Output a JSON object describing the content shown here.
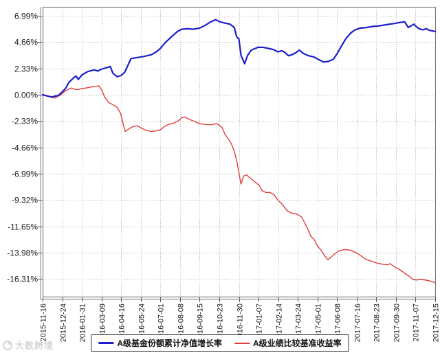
{
  "watermark": {
    "text": "大数跨境"
  },
  "colors": {
    "fund_line": "#1c1ccb",
    "benchmark_line": "#e23b3b",
    "grid": "#b8b8b8",
    "axis": "#7e7e7e"
  },
  "chart_data": {
    "type": "line",
    "grid": true,
    "legend_position": "bottom",
    "x_tick_labels": [
      "2015-11-16",
      "2015-12-24",
      "2016-01-31",
      "2016-03-09",
      "2016-04-16",
      "2016-05-24",
      "2016-07-01",
      "2016-08-08",
      "2016-09-15",
      "2016-10-23",
      "2016-11-30",
      "2017-01-07",
      "2017-02-14",
      "2017-03-24",
      "2017-05-01",
      "2017-06-08",
      "2017-07-16",
      "2017-08-23",
      "2017-09-30",
      "2017-11-07",
      "2017-12-15"
    ],
    "y_tick_labels": [
      "6.99%",
      "4.66%",
      "2.33%",
      "0.00%",
      "-2.33%",
      "-4.66%",
      "-6.99%",
      "-9.32%",
      "-11.65%",
      "-13.98%",
      "-16.31%"
    ],
    "y_ticks": [
      6.99,
      4.66,
      2.33,
      0.0,
      -2.33,
      -4.66,
      -6.99,
      -9.32,
      -11.65,
      -13.98,
      -16.31
    ],
    "ylim": [
      -17.9,
      7.8
    ],
    "x_range_days": 760,
    "series": [
      {
        "name": "A级基金份额累计净值增长率",
        "color": "#1c1ccb",
        "width": 2.2,
        "points": [
          [
            0,
            0.0
          ],
          [
            8,
            -0.1
          ],
          [
            17,
            -0.2
          ],
          [
            31,
            -0.05
          ],
          [
            39,
            0.3
          ],
          [
            45,
            0.6
          ],
          [
            51,
            1.1
          ],
          [
            60,
            1.5
          ],
          [
            65,
            1.65
          ],
          [
            69,
            1.35
          ],
          [
            76,
            1.75
          ],
          [
            87,
            2.05
          ],
          [
            100,
            2.2
          ],
          [
            107,
            2.1
          ],
          [
            113,
            2.25
          ],
          [
            124,
            2.4
          ],
          [
            131,
            2.5
          ],
          [
            136,
            1.9
          ],
          [
            144,
            1.6
          ],
          [
            152,
            1.7
          ],
          [
            159,
            2.0
          ],
          [
            165,
            2.6
          ],
          [
            171,
            3.2
          ],
          [
            184,
            3.3
          ],
          [
            197,
            3.4
          ],
          [
            211,
            3.55
          ],
          [
            220,
            3.8
          ],
          [
            228,
            4.1
          ],
          [
            237,
            4.6
          ],
          [
            251,
            5.2
          ],
          [
            261,
            5.6
          ],
          [
            269,
            5.8
          ],
          [
            280,
            5.85
          ],
          [
            291,
            5.8
          ],
          [
            304,
            5.9
          ],
          [
            315,
            6.15
          ],
          [
            325,
            6.45
          ],
          [
            335,
            6.65
          ],
          [
            341,
            6.5
          ],
          [
            352,
            6.35
          ],
          [
            363,
            6.25
          ],
          [
            371,
            5.95
          ],
          [
            376,
            5.1
          ],
          [
            380,
            4.95
          ],
          [
            384,
            3.5
          ],
          [
            391,
            2.75
          ],
          [
            397,
            3.5
          ],
          [
            404,
            3.95
          ],
          [
            412,
            4.1
          ],
          [
            417,
            4.2
          ],
          [
            427,
            4.2
          ],
          [
            437,
            4.1
          ],
          [
            447,
            4.0
          ],
          [
            456,
            3.8
          ],
          [
            463,
            3.9
          ],
          [
            469,
            3.75
          ],
          [
            476,
            3.45
          ],
          [
            483,
            3.55
          ],
          [
            491,
            3.75
          ],
          [
            497,
            3.95
          ],
          [
            505,
            3.65
          ],
          [
            515,
            3.45
          ],
          [
            525,
            3.35
          ],
          [
            535,
            3.1
          ],
          [
            544,
            2.9
          ],
          [
            553,
            2.95
          ],
          [
            563,
            3.15
          ],
          [
            571,
            3.7
          ],
          [
            579,
            4.35
          ],
          [
            587,
            4.95
          ],
          [
            596,
            5.45
          ],
          [
            605,
            5.75
          ],
          [
            615,
            5.9
          ],
          [
            627,
            5.95
          ],
          [
            639,
            6.05
          ],
          [
            652,
            6.1
          ],
          [
            665,
            6.2
          ],
          [
            679,
            6.3
          ],
          [
            692,
            6.4
          ],
          [
            701,
            6.45
          ],
          [
            708,
            5.95
          ],
          [
            715,
            6.15
          ],
          [
            719,
            6.25
          ],
          [
            724,
            6.0
          ],
          [
            729,
            5.85
          ],
          [
            736,
            5.75
          ],
          [
            743,
            5.85
          ],
          [
            749,
            5.7
          ],
          [
            755,
            5.65
          ],
          [
            760,
            5.6
          ]
        ]
      },
      {
        "name": "A级业绩比较基准收益率",
        "color": "#e23b3b",
        "width": 1.4,
        "points": [
          [
            0,
            0.0
          ],
          [
            11,
            -0.15
          ],
          [
            24,
            -0.3
          ],
          [
            35,
            0.0
          ],
          [
            44,
            0.35
          ],
          [
            55,
            0.6
          ],
          [
            61,
            0.5
          ],
          [
            68,
            0.45
          ],
          [
            76,
            0.55
          ],
          [
            85,
            0.6
          ],
          [
            95,
            0.7
          ],
          [
            104,
            0.75
          ],
          [
            109,
            0.8
          ],
          [
            115,
            0.35
          ],
          [
            120,
            -0.2
          ],
          [
            128,
            -0.7
          ],
          [
            137,
            -0.9
          ],
          [
            144,
            -1.1
          ],
          [
            151,
            -1.65
          ],
          [
            156,
            -2.6
          ],
          [
            160,
            -3.25
          ],
          [
            168,
            -3.0
          ],
          [
            176,
            -2.8
          ],
          [
            183,
            -2.75
          ],
          [
            191,
            -2.95
          ],
          [
            200,
            -3.15
          ],
          [
            211,
            -3.25
          ],
          [
            220,
            -3.2
          ],
          [
            228,
            -3.1
          ],
          [
            236,
            -2.8
          ],
          [
            245,
            -2.6
          ],
          [
            255,
            -2.5
          ],
          [
            263,
            -2.3
          ],
          [
            269,
            -2.05
          ],
          [
            275,
            -1.95
          ],
          [
            283,
            -2.15
          ],
          [
            293,
            -2.35
          ],
          [
            304,
            -2.55
          ],
          [
            316,
            -2.65
          ],
          [
            328,
            -2.65
          ],
          [
            337,
            -2.55
          ],
          [
            343,
            -2.75
          ],
          [
            348,
            -2.95
          ],
          [
            353,
            -3.5
          ],
          [
            360,
            -3.95
          ],
          [
            365,
            -4.3
          ],
          [
            371,
            -5.0
          ],
          [
            376,
            -5.9
          ],
          [
            380,
            -6.9
          ],
          [
            384,
            -7.9
          ],
          [
            389,
            -7.2
          ],
          [
            395,
            -7.1
          ],
          [
            401,
            -7.35
          ],
          [
            408,
            -7.6
          ],
          [
            413,
            -7.8
          ],
          [
            419,
            -8.0
          ],
          [
            425,
            -8.5
          ],
          [
            432,
            -8.65
          ],
          [
            440,
            -8.65
          ],
          [
            448,
            -8.85
          ],
          [
            456,
            -9.35
          ],
          [
            464,
            -9.7
          ],
          [
            473,
            -10.25
          ],
          [
            483,
            -10.5
          ],
          [
            491,
            -10.55
          ],
          [
            495,
            -10.65
          ],
          [
            501,
            -10.8
          ],
          [
            507,
            -11.3
          ],
          [
            513,
            -11.85
          ],
          [
            519,
            -12.5
          ],
          [
            527,
            -12.9
          ],
          [
            532,
            -13.4
          ],
          [
            539,
            -13.75
          ],
          [
            545,
            -14.2
          ],
          [
            552,
            -14.6
          ],
          [
            558,
            -14.4
          ],
          [
            565,
            -14.1
          ],
          [
            573,
            -13.85
          ],
          [
            584,
            -13.7
          ],
          [
            595,
            -13.75
          ],
          [
            603,
            -13.9
          ],
          [
            608,
            -14.0
          ],
          [
            616,
            -14.25
          ],
          [
            625,
            -14.55
          ],
          [
            634,
            -14.7
          ],
          [
            647,
            -14.9
          ],
          [
            657,
            -15.0
          ],
          [
            668,
            -15.05
          ],
          [
            673,
            -14.95
          ],
          [
            680,
            -15.2
          ],
          [
            684,
            -15.3
          ],
          [
            692,
            -15.5
          ],
          [
            701,
            -15.8
          ],
          [
            709,
            -16.05
          ],
          [
            717,
            -16.35
          ],
          [
            723,
            -16.4
          ],
          [
            732,
            -16.35
          ],
          [
            741,
            -16.4
          ],
          [
            751,
            -16.5
          ],
          [
            760,
            -16.65
          ]
        ]
      }
    ]
  }
}
